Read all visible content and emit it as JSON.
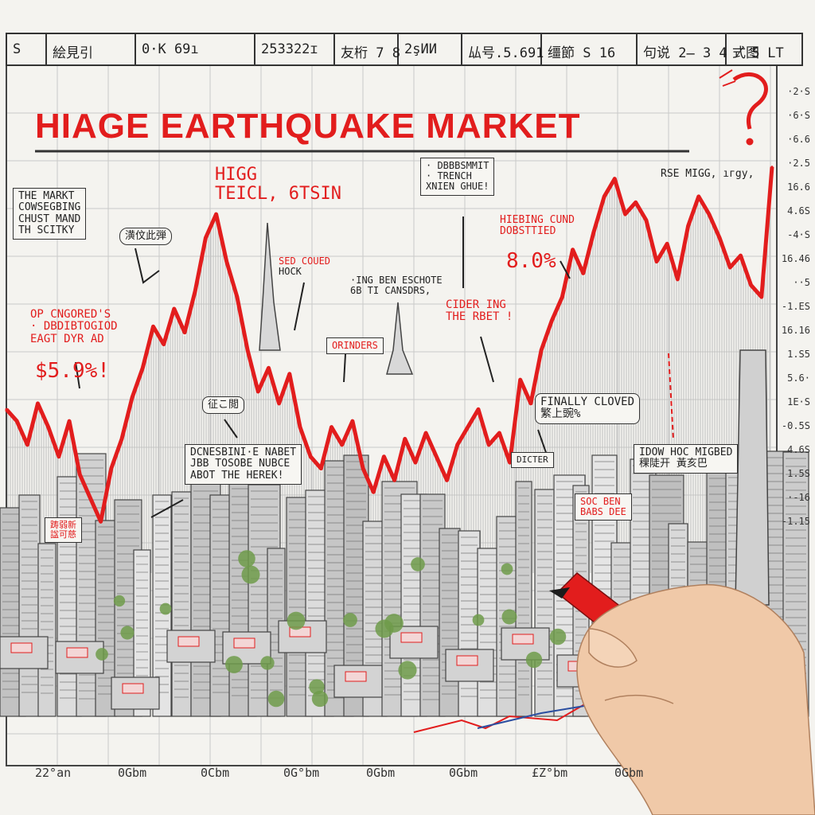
{
  "header_cells": [
    "S",
    "絵見引",
    "0·K  69ı",
    "253322ɪ",
    "友桁 7 8",
    "2şИИ",
    "厸号.5.691",
    "缰節 S 16",
    "句说 2̶ 3 4 ̸ 5",
    "式图 LT"
  ],
  "title": "HIAGE EARTHQUAKE MARKET",
  "annotations": {
    "high": [
      "HIGG",
      "TEICL, 6TSIN"
    ],
    "market_note": [
      "THE MARKT",
      "COWSEGBING",
      "CHUST MAND",
      "TH SCITKY"
    ],
    "bubble_top_left": "潢伩此弾",
    "sed_note": [
      "SED COUED",
      "HOCK"
    ],
    "ing_note": [
      "·ING BEN ESCHOTE",
      "6B TI CANSDRS,"
    ],
    "top_box": [
      "· DBBBSMMIT",
      "· TRENCH",
      "XNIEN GHUE!"
    ],
    "right_note": "RSE MIGG, ıгgу,",
    "closed_note": [
      "HIEBING CUND",
      "DOBSTTIED"
    ],
    "closed_pct": "8.0%",
    "left_red": [
      "OP CNGORED'S",
      "· DBDIBTOGIOD",
      "EAGT DYR AD"
    ],
    "left_pct": "$5.9%!",
    "cider_note": [
      "CIDER ING",
      "THE RBET !"
    ],
    "orinders": "ORINDERS",
    "bubble_mid": "征こ閲",
    "finally": [
      "FINALLY CLOVED",
      "繁上豌%"
    ],
    "center_box": [
      "DCNESBINI·E NABET",
      "JBB TOSOBE NUBCE",
      "ABOT THE HEREK!"
    ],
    "right_box": [
      "IDOW HOC MIGBED",
      "稞陡开 黃亥巴"
    ],
    "dicter": "DICTER",
    "soc_box": [
      "SOC BEN",
      "BABS DEE"
    ],
    "left_sign": [
      "踌弱新",
      "諡可慈"
    ]
  },
  "x_ticks": [
    "22°an",
    "0Gbm",
    "0Cbm",
    "0G°bm",
    "0Gbm",
    "0Gbm",
    "£Z°bm",
    "0Gbm"
  ],
  "y_ticks": [
    "·2·S",
    "·6·S",
    "·6.6",
    "·2.5",
    "16.6",
    "4.6S",
    "-4·S",
    "16.46",
    "··5",
    "-1.ES",
    "16.16",
    "1.S5",
    "5.6·",
    "1E·S",
    "-0.5S",
    "4.6S",
    "1.5S",
    "·-16",
    "-1.15"
  ],
  "colors": {
    "accent": "#e21d1d",
    "ink": "#2b2b2b",
    "paper": "#f4f3ef",
    "marker_cap": "#1c1c1c",
    "skin": "#f0c9a8"
  },
  "chart_data": {
    "type": "line",
    "title": "HIAGE EARTHQUAKE MARKET",
    "series": [
      {
        "values": [
          55,
          53,
          49,
          56,
          52,
          47,
          53,
          44,
          40,
          36,
          45,
          50,
          57,
          62,
          69,
          66,
          72,
          68,
          75,
          84,
          88,
          80,
          74,
          65,
          58,
          62,
          56,
          61,
          52,
          47,
          45,
          52,
          49,
          53,
          45,
          41,
          47,
          43,
          50,
          46,
          51,
          47,
          43,
          49,
          52,
          55,
          49,
          51,
          46,
          60,
          56,
          65,
          70,
          74,
          82,
          78,
          85,
          91,
          94,
          88,
          90,
          87,
          80,
          83,
          77,
          86,
          91,
          88,
          84,
          79,
          81,
          76,
          74,
          96
        ]
      }
    ]
  }
}
